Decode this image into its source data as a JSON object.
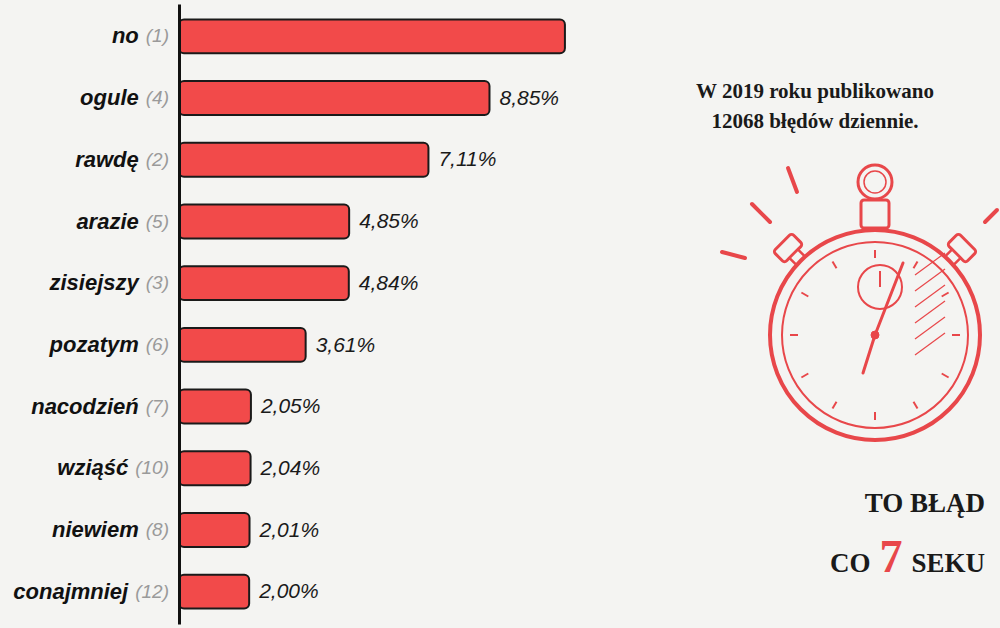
{
  "chart_data": {
    "type": "bar",
    "orientation": "horizontal",
    "categories": [
      "no",
      "ogule",
      "rawdę",
      "arazie",
      "zisiejszy",
      "pozatym",
      "nacodzień",
      "wziąść",
      "niewiem",
      "conajmniej"
    ],
    "ranks": [
      "(1)",
      "(4)",
      "(2)",
      "(5)",
      "(3)",
      "(6)",
      "(7)",
      "(10)",
      "(8)",
      "(12)"
    ],
    "values": [
      11,
      8.85,
      7.11,
      4.85,
      4.84,
      3.61,
      2.05,
      2.04,
      2.01,
      2.0
    ],
    "value_labels": [
      null,
      "8,85%",
      "7,11%",
      "4,85%",
      "4,84%",
      "3,61%",
      "2,05%",
      "2,04%",
      "2,01%",
      "2,00%"
    ],
    "color": "#f24a4a",
    "xlim": [
      0,
      12
    ],
    "tick_labels": "y",
    "grid": false,
    "data_labels": true,
    "annotations": {
      "headline": [
        "W 2019 roku publikowano",
        "12068 błędów dziennie."
      ],
      "callout": {
        "line1": "TO BŁĄD",
        "prefix": "CO",
        "number": 7,
        "suffix": "SEKU"
      }
    }
  }
}
